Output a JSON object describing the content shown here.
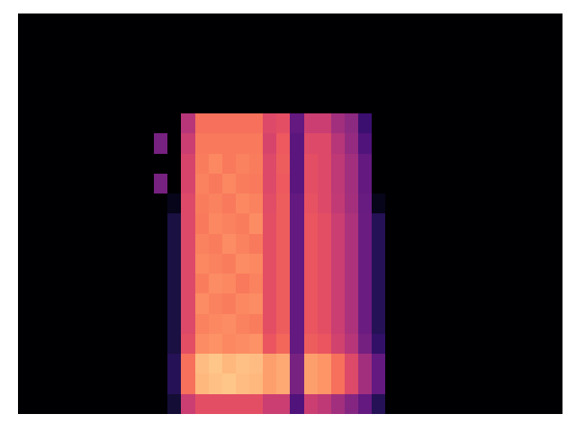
{
  "chart_data": {
    "type": "heatmap",
    "color": "magma",
    "tick_labels": false,
    "value_range": [
      0,
      1
    ],
    "cells": [
      [
        0,
        0,
        0,
        0,
        0,
        0,
        0,
        0,
        0,
        0,
        0,
        0,
        0,
        0,
        0,
        0,
        0,
        0,
        0,
        0,
        0,
        0,
        0,
        0,
        0,
        0,
        0,
        0,
        0,
        0,
        0,
        0,
        0,
        0,
        0,
        0,
        0,
        0,
        0,
        0
      ],
      [
        0,
        0,
        0,
        0,
        0,
        0,
        0,
        0,
        0,
        0,
        0,
        0,
        0,
        0,
        0,
        0,
        0,
        0,
        0,
        0,
        0,
        0,
        0,
        0,
        0,
        0,
        0,
        0,
        0,
        0,
        0,
        0,
        0,
        0,
        0,
        0,
        0,
        0,
        0,
        0
      ],
      [
        0,
        0,
        0,
        0,
        0,
        0,
        0,
        0,
        0,
        0,
        0,
        0,
        0,
        0,
        0,
        0,
        0,
        0,
        0,
        0,
        0,
        0,
        0,
        0,
        0,
        0,
        0,
        0,
        0,
        0,
        0,
        0,
        0,
        0,
        0,
        0,
        0,
        0,
        0,
        0
      ],
      [
        0,
        0,
        0,
        0,
        0,
        0,
        0,
        0,
        0,
        0,
        0,
        0,
        0,
        0,
        0,
        0,
        0,
        0,
        0,
        0,
        0,
        0,
        0,
        0,
        0,
        0,
        0,
        0,
        0,
        0,
        0,
        0,
        0,
        0,
        0,
        0,
        0,
        0,
        0,
        0
      ],
      [
        0,
        0,
        0,
        0,
        0,
        0,
        0,
        0,
        0,
        0,
        0,
        0,
        0,
        0,
        0,
        0,
        0,
        0,
        0,
        0,
        0,
        0,
        0,
        0,
        0,
        0,
        0,
        0,
        0,
        0,
        0,
        0,
        0,
        0,
        0,
        0,
        0,
        0,
        0,
        0
      ],
      [
        0,
        0,
        0,
        0,
        0,
        0,
        0,
        0,
        0,
        0,
        0,
        0,
        0.5,
        0.7,
        0.7,
        0.7,
        0.7,
        0.7,
        0.6,
        0.62,
        0.3,
        0.55,
        0.55,
        0.45,
        0.4,
        0.2,
        0,
        0,
        0,
        0,
        0,
        0,
        0,
        0,
        0,
        0,
        0,
        0,
        0,
        0
      ],
      [
        0,
        0,
        0,
        0,
        0,
        0,
        0,
        0,
        0,
        0,
        0.35,
        0,
        0.55,
        0.72,
        0.72,
        0.72,
        0.72,
        0.72,
        0.58,
        0.65,
        0.28,
        0.6,
        0.6,
        0.5,
        0.42,
        0.25,
        0,
        0,
        0,
        0,
        0,
        0,
        0,
        0,
        0,
        0,
        0,
        0,
        0,
        0
      ],
      [
        0,
        0,
        0,
        0,
        0,
        0,
        0,
        0,
        0,
        0,
        0,
        0,
        0.58,
        0.73,
        0.75,
        0.72,
        0.74,
        0.73,
        0.6,
        0.66,
        0.28,
        0.62,
        0.6,
        0.52,
        0.45,
        0.3,
        0,
        0,
        0,
        0,
        0,
        0,
        0,
        0,
        0,
        0,
        0,
        0,
        0,
        0
      ],
      [
        0,
        0,
        0,
        0,
        0,
        0,
        0,
        0,
        0,
        0,
        0.35,
        0,
        0.58,
        0.74,
        0.72,
        0.75,
        0.73,
        0.72,
        0.6,
        0.65,
        0.28,
        0.62,
        0.6,
        0.52,
        0.45,
        0.3,
        0,
        0,
        0,
        0,
        0,
        0,
        0,
        0,
        0,
        0,
        0,
        0,
        0,
        0
      ],
      [
        0,
        0,
        0,
        0,
        0,
        0,
        0,
        0,
        0,
        0,
        0,
        0.05,
        0.6,
        0.73,
        0.74,
        0.72,
        0.75,
        0.74,
        0.61,
        0.66,
        0.3,
        0.63,
        0.6,
        0.53,
        0.46,
        0.31,
        0.05,
        0,
        0,
        0,
        0,
        0,
        0,
        0,
        0,
        0,
        0,
        0,
        0,
        0
      ],
      [
        0,
        0,
        0,
        0,
        0,
        0,
        0,
        0,
        0,
        0,
        0,
        0.12,
        0.6,
        0.72,
        0.75,
        0.74,
        0.73,
        0.76,
        0.62,
        0.66,
        0.3,
        0.64,
        0.62,
        0.55,
        0.48,
        0.32,
        0.15,
        0,
        0,
        0,
        0,
        0,
        0,
        0,
        0,
        0,
        0,
        0,
        0,
        0
      ],
      [
        0,
        0,
        0,
        0,
        0,
        0,
        0,
        0,
        0,
        0,
        0,
        0.12,
        0.6,
        0.74,
        0.73,
        0.76,
        0.74,
        0.72,
        0.62,
        0.66,
        0.3,
        0.64,
        0.62,
        0.55,
        0.48,
        0.32,
        0.15,
        0,
        0,
        0,
        0,
        0,
        0,
        0,
        0,
        0,
        0,
        0,
        0,
        0
      ],
      [
        0,
        0,
        0,
        0,
        0,
        0,
        0,
        0,
        0,
        0,
        0,
        0.12,
        0.6,
        0.75,
        0.74,
        0.73,
        0.76,
        0.75,
        0.62,
        0.66,
        0.3,
        0.64,
        0.62,
        0.55,
        0.48,
        0.32,
        0.15,
        0,
        0,
        0,
        0,
        0,
        0,
        0,
        0,
        0,
        0,
        0,
        0,
        0
      ],
      [
        0,
        0,
        0,
        0,
        0,
        0,
        0,
        0,
        0,
        0,
        0,
        0.12,
        0.6,
        0.73,
        0.76,
        0.75,
        0.72,
        0.74,
        0.62,
        0.66,
        0.3,
        0.64,
        0.62,
        0.55,
        0.48,
        0.32,
        0.15,
        0,
        0,
        0,
        0,
        0,
        0,
        0,
        0,
        0,
        0,
        0,
        0,
        0
      ],
      [
        0,
        0,
        0,
        0,
        0,
        0,
        0,
        0,
        0,
        0,
        0,
        0.12,
        0.6,
        0.76,
        0.74,
        0.73,
        0.75,
        0.76,
        0.62,
        0.66,
        0.3,
        0.64,
        0.62,
        0.55,
        0.48,
        0.32,
        0.15,
        0,
        0,
        0,
        0,
        0,
        0,
        0,
        0,
        0,
        0,
        0,
        0,
        0
      ],
      [
        0,
        0,
        0,
        0,
        0,
        0,
        0,
        0,
        0,
        0,
        0,
        0.12,
        0.6,
        0.74,
        0.75,
        0.76,
        0.74,
        0.73,
        0.62,
        0.66,
        0.3,
        0.64,
        0.62,
        0.55,
        0.48,
        0.32,
        0.15,
        0,
        0,
        0,
        0,
        0,
        0,
        0,
        0,
        0,
        0,
        0,
        0,
        0
      ],
      [
        0,
        0,
        0,
        0,
        0,
        0,
        0,
        0,
        0,
        0,
        0,
        0.12,
        0.62,
        0.76,
        0.77,
        0.75,
        0.76,
        0.77,
        0.64,
        0.68,
        0.3,
        0.66,
        0.64,
        0.57,
        0.5,
        0.34,
        0.18,
        0,
        0,
        0,
        0,
        0,
        0,
        0,
        0,
        0,
        0,
        0,
        0,
        0
      ],
      [
        0,
        0,
        0,
        0,
        0,
        0,
        0,
        0,
        0,
        0,
        0,
        0.15,
        0.7,
        0.86,
        0.88,
        0.85,
        0.87,
        0.86,
        0.8,
        0.82,
        0.35,
        0.8,
        0.78,
        0.7,
        0.6,
        0.45,
        0.3,
        0,
        0,
        0,
        0,
        0,
        0,
        0,
        0,
        0,
        0,
        0,
        0,
        0
      ],
      [
        0,
        0,
        0,
        0,
        0,
        0,
        0,
        0,
        0,
        0,
        0,
        0.15,
        0.7,
        0.85,
        0.87,
        0.88,
        0.86,
        0.85,
        0.8,
        0.82,
        0.35,
        0.8,
        0.78,
        0.7,
        0.6,
        0.45,
        0.3,
        0,
        0,
        0,
        0,
        0,
        0,
        0,
        0,
        0,
        0,
        0,
        0,
        0
      ],
      [
        0,
        0,
        0,
        0,
        0,
        0,
        0,
        0,
        0,
        0,
        0,
        0.1,
        0.55,
        0.62,
        0.62,
        0.62,
        0.62,
        0.62,
        0.55,
        0.55,
        0.25,
        0.55,
        0.52,
        0.45,
        0.38,
        0.3,
        0.15,
        0,
        0,
        0,
        0,
        0,
        0,
        0,
        0,
        0,
        0,
        0,
        0,
        0
      ]
    ]
  }
}
